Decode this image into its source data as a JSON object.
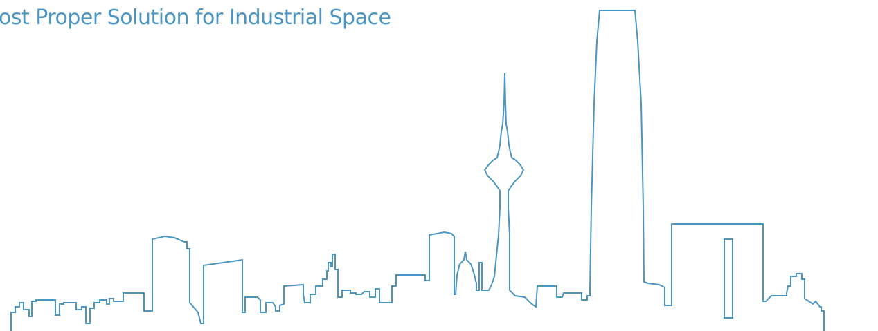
{
  "headline": "ost Proper Solution for Industrial Space",
  "colors": {
    "accent": "#4a95c2",
    "background": "#ffffff"
  }
}
